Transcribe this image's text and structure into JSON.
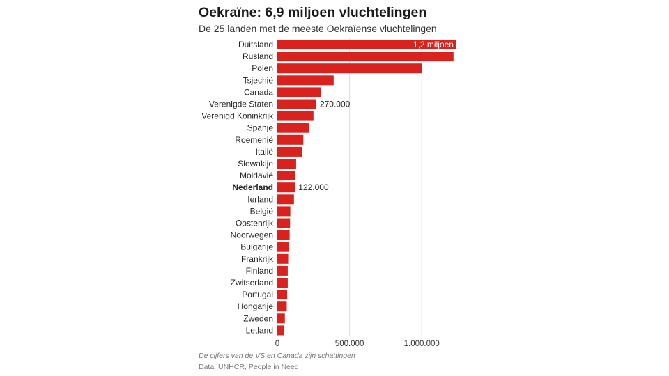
{
  "header": {
    "title": "Oekraïne: 6,9 miljoen vluchtelingen",
    "subtitle": "De 25 landen met de meeste Oekraïense vluchtelingen"
  },
  "footer": {
    "note": "De cijfers van de VS en Canada zijn schattingen",
    "source": "Data: UNHCR, People in Need"
  },
  "colors": {
    "bar": "#d9211e",
    "grid": "#dddddd",
    "label_inside": "#ffffff",
    "text": "#222222"
  },
  "chart_data": {
    "type": "bar",
    "orientation": "horizontal",
    "categories": [
      "Duitsland",
      "Rusland",
      "Polen",
      "Tsjechië",
      "Canada",
      "Verenigde Staten",
      "Verenigd Koninkrijk",
      "Spanje",
      "Roemenië",
      "Italië",
      "Slowakije",
      "Moldavië",
      "Nederland",
      "Ierland",
      "België",
      "Oostenrijk",
      "Noorwegen",
      "Bulgarije",
      "Frankrijk",
      "Finland",
      "Zwitserland",
      "Portugal",
      "Hongarije",
      "Zweden",
      "Letland"
    ],
    "values": [
      1240000,
      1220000,
      1000000,
      390000,
      300000,
      270000,
      250000,
      220000,
      180000,
      170000,
      130000,
      125000,
      122000,
      115000,
      90000,
      88000,
      85000,
      80000,
      75000,
      72000,
      72000,
      68000,
      65000,
      52000,
      48000
    ],
    "highlight": "Nederland",
    "xlim": [
      0,
      1250000
    ],
    "xticks": [
      {
        "value": 0,
        "label": "0"
      },
      {
        "value": 500000,
        "label": "500.000"
      },
      {
        "value": 1000000,
        "label": "1.000.000"
      }
    ],
    "grid": true,
    "data_labels": [
      {
        "category": "Duitsland",
        "text": "1,2 miljoen",
        "inside": true
      },
      {
        "category": "Verenigde Staten",
        "text": "270.000",
        "inside": false
      },
      {
        "category": "Nederland",
        "text": "122.000",
        "inside": false
      }
    ]
  }
}
